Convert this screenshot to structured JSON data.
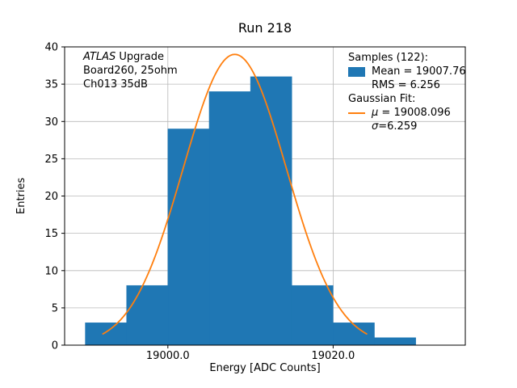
{
  "figure": {
    "title": "Run 218",
    "xlabel": "Energy [ADC Counts]",
    "ylabel": "Entries"
  },
  "annotation": {
    "line1_italic": "ATLAS",
    "line1_rest": " Upgrade",
    "line2": "Board260, 25ohm",
    "line3": "Ch013 35dB"
  },
  "legend": {
    "samples_header": "Samples (122):",
    "mean_label": "Mean = 19007.76",
    "rms_label": "RMS = 6.256",
    "fit_header": "Gaussian Fit:",
    "mu_symbol": "μ",
    "mu_value": " = 19008.096",
    "sigma_symbol": "σ",
    "sigma_value": "=6.259",
    "hist_color": "#1f77b4",
    "fit_color": "#ff7f0e"
  },
  "chart_data": {
    "type": "bar",
    "subtype": "histogram-with-gaussian-fit",
    "title": "Run 218",
    "xlabel": "Energy [ADC Counts]",
    "ylabel": "Entries",
    "bin_edges": [
      18990,
      18995,
      19000,
      19005,
      19010,
      19015,
      19020,
      19025,
      19030
    ],
    "counts": [
      3,
      8,
      29,
      34,
      36,
      8,
      3,
      1
    ],
    "n_samples": 122,
    "mean": 19007.76,
    "rms": 6.256,
    "gaussian_fit": {
      "mu": 19008.096,
      "sigma": 6.259,
      "amplitude": 39
    },
    "xlim": [
      18987.5,
      19036
    ],
    "ylim": [
      0,
      40
    ],
    "xticks": [
      {
        "value": 19000,
        "label": "19000.0"
      },
      {
        "value": 19020,
        "label": "19020.0"
      }
    ],
    "yticks": [
      0,
      5,
      10,
      15,
      20,
      25,
      30,
      35,
      40
    ],
    "grid": true,
    "legend_position": "upper right",
    "colors": {
      "bars": "#1f77b4",
      "curve": "#ff7f0e",
      "grid": "#b8b8b8",
      "frame": "#000000"
    }
  }
}
